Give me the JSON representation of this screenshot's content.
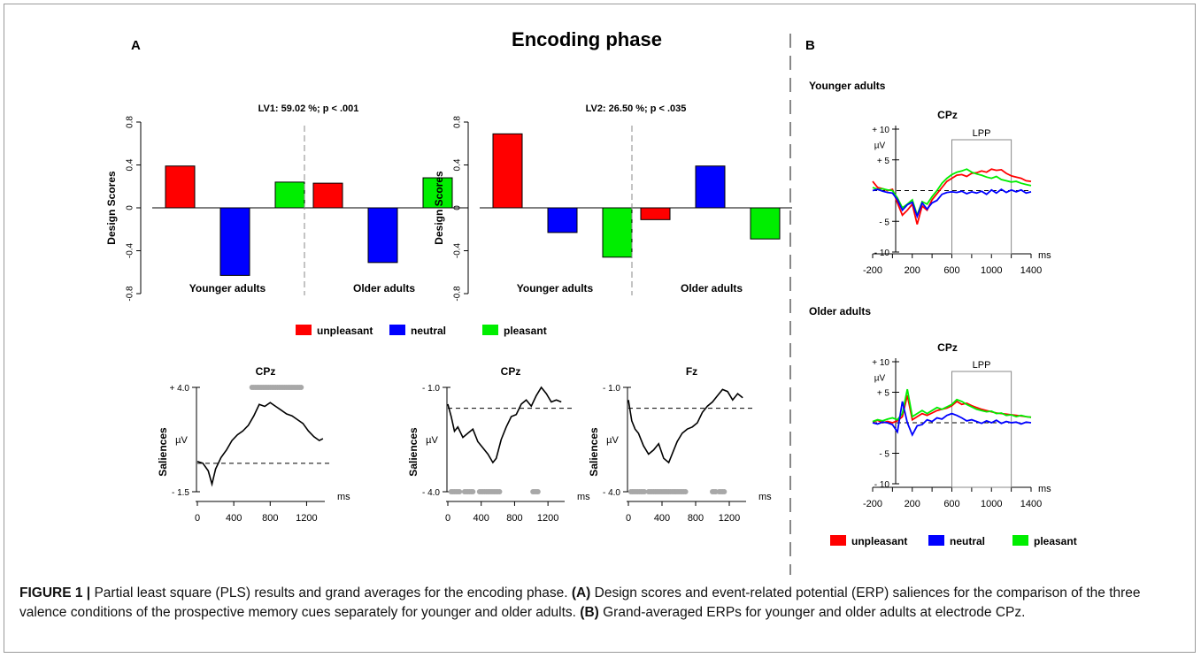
{
  "panel_a": {
    "label": "A",
    "title": "Encoding phase",
    "legend": [
      {
        "name": "unpleasant",
        "color": "#ff0000"
      },
      {
        "name": "neutral",
        "color": "#0000ff"
      },
      {
        "name": "pleasant",
        "color": "#00ee00"
      }
    ]
  },
  "panel_b": {
    "label": "B",
    "younger_label": "Younger adults",
    "older_label": "Older adults",
    "legend": [
      {
        "name": "unpleasant",
        "color": "#ff0000"
      },
      {
        "name": "neutral",
        "color": "#0000ff"
      },
      {
        "name": "pleasant",
        "color": "#00ee00"
      }
    ]
  },
  "chart_data": [
    {
      "id": "lv1",
      "type": "bar",
      "title": "LV1: 59.02 %; p < .001",
      "ylabel": "Design Scores",
      "ylim": [
        -0.8,
        0.8
      ],
      "yticks": [
        "0.8",
        "0.4",
        "0",
        "-0.4",
        "-0.8"
      ],
      "groups": [
        "Younger adults",
        "Older adults"
      ],
      "categories": [
        "unpleasant",
        "neutral",
        "pleasant"
      ],
      "series": [
        {
          "group": "Younger adults",
          "values": [
            0.39,
            -0.63,
            0.24
          ]
        },
        {
          "group": "Older adults",
          "values": [
            0.23,
            -0.51,
            0.28
          ]
        }
      ]
    },
    {
      "id": "lv2",
      "type": "bar",
      "title": "LV2: 26.50 %; p < .035",
      "ylabel": "Design Scores",
      "ylim": [
        -0.8,
        0.8
      ],
      "yticks": [
        "0.8",
        "0.4",
        "0",
        "-0.4",
        "-0.8"
      ],
      "groups": [
        "Younger adults",
        "Older adults"
      ],
      "categories": [
        "unpleasant",
        "neutral",
        "pleasant"
      ],
      "series": [
        {
          "group": "Younger adults",
          "values": [
            0.69,
            -0.23,
            -0.46
          ]
        },
        {
          "group": "Older adults",
          "values": [
            -0.11,
            0.39,
            -0.29
          ]
        }
      ]
    },
    {
      "id": "sal_cpz_1",
      "type": "line",
      "title": "CPz",
      "ylabel": "Saliences",
      "ylabel2": "µV",
      "xunit": "ms",
      "ylim": [
        -1.5,
        4.0
      ],
      "ytick_top": "+ 4.0",
      "ytick_bottom": "- 1.5",
      "xticks": [
        0,
        400,
        800,
        1200
      ],
      "baseline": 0,
      "x": [
        0,
        60,
        120,
        160,
        200,
        260,
        320,
        380,
        440,
        500,
        560,
        620,
        680,
        740,
        800,
        860,
        920,
        980,
        1040,
        1100,
        1160,
        1220,
        1280,
        1340,
        1380
      ],
      "y": [
        0.1,
        0.0,
        -0.4,
        -1.1,
        -0.3,
        0.3,
        0.7,
        1.2,
        1.5,
        1.7,
        2.0,
        2.5,
        3.1,
        3.0,
        3.2,
        3.0,
        2.8,
        2.6,
        2.5,
        2.3,
        2.1,
        1.7,
        1.4,
        1.2,
        1.3
      ],
      "sig_ranges": [
        [
          600,
          1140
        ]
      ]
    },
    {
      "id": "sal_cpz_2",
      "type": "line",
      "title": "CPz",
      "ylabel": "Saliences",
      "ylabel2": "µV",
      "xunit": "ms",
      "ylim": [
        -4.0,
        1.0
      ],
      "ytick_top": "- 1.0",
      "ytick_bottom": "- 4.0",
      "xticks": [
        0,
        400,
        800,
        1200
      ],
      "baseline": 0,
      "x": [
        0,
        40,
        80,
        120,
        180,
        240,
        300,
        360,
        420,
        480,
        540,
        580,
        640,
        700,
        760,
        820,
        880,
        940,
        1000,
        1060,
        1120,
        1180,
        1240,
        1300,
        1360
      ],
      "y": [
        0.2,
        -0.4,
        -1.1,
        -0.9,
        -1.4,
        -1.2,
        -1.0,
        -1.6,
        -1.9,
        -2.2,
        -2.6,
        -2.4,
        -1.5,
        -0.9,
        -0.4,
        -0.3,
        0.2,
        0.4,
        0.1,
        0.6,
        1.0,
        0.7,
        0.3,
        0.4,
        0.3
      ],
      "sig_ranges": [
        [
          40,
          140
        ],
        [
          200,
          310
        ],
        [
          380,
          630
        ],
        [
          1020,
          1080
        ]
      ]
    },
    {
      "id": "sal_fz",
      "type": "line",
      "title": "Fz",
      "ylabel": "Saliences",
      "ylabel2": "µV",
      "xunit": "ms",
      "ylim": [
        -4.0,
        1.0
      ],
      "ytick_top": "- 1.0",
      "ytick_bottom": "- 4.0",
      "xticks": [
        0,
        400,
        800,
        1200
      ],
      "baseline": 0,
      "x": [
        0,
        40,
        80,
        120,
        180,
        240,
        300,
        360,
        420,
        480,
        540,
        580,
        640,
        700,
        760,
        820,
        880,
        940,
        1000,
        1060,
        1120,
        1180,
        1240,
        1300,
        1360
      ],
      "y": [
        0.4,
        -0.6,
        -1.0,
        -1.2,
        -1.8,
        -2.2,
        -2.0,
        -1.7,
        -2.4,
        -2.6,
        -2.0,
        -1.6,
        -1.2,
        -1.0,
        -0.9,
        -0.7,
        -0.2,
        0.1,
        0.3,
        0.6,
        0.9,
        0.8,
        0.4,
        0.7,
        0.5
      ],
      "sig_ranges": [
        [
          30,
          200
        ],
        [
          240,
          420
        ],
        [
          440,
          680
        ],
        [
          1000,
          1040
        ],
        [
          1080,
          1140
        ]
      ]
    },
    {
      "id": "erp_younger",
      "type": "line",
      "title": "CPz",
      "ylabel": "µV",
      "xunit": "ms",
      "ylim": [
        -10,
        10
      ],
      "ytick_labels": [
        "+ 10",
        "+ 5",
        "- 5",
        "- 10"
      ],
      "ytick_values": [
        10,
        5,
        -5,
        -10
      ],
      "xlim": [
        -200,
        1400
      ],
      "xticks": [
        -200,
        200,
        600,
        1000,
        1400
      ],
      "box_label": "LPP",
      "box_range": [
        600,
        1200
      ],
      "x": [
        -200,
        -150,
        -100,
        -50,
        0,
        50,
        100,
        150,
        200,
        250,
        300,
        350,
        400,
        450,
        500,
        550,
        600,
        650,
        700,
        750,
        800,
        850,
        900,
        950,
        1000,
        1050,
        1100,
        1150,
        1200,
        1250,
        1300,
        1350,
        1400
      ],
      "series": [
        {
          "name": "unpleasant",
          "values": [
            1.5,
            0.5,
            0.3,
            0.0,
            0.2,
            -2.0,
            -4.0,
            -3.2,
            -2.2,
            -5.5,
            -2.5,
            -3.2,
            -1.5,
            -0.5,
            0.5,
            1.5,
            2.0,
            2.5,
            2.6,
            2.3,
            2.8,
            2.9,
            3.2,
            3.0,
            3.5,
            3.3,
            3.4,
            2.8,
            2.4,
            2.2,
            2.0,
            1.6,
            1.5
          ]
        },
        {
          "name": "neutral",
          "values": [
            0.0,
            0.2,
            -0.1,
            -0.3,
            -0.4,
            -1.5,
            -3.2,
            -2.3,
            -1.9,
            -4.2,
            -2.0,
            -3.0,
            -2.0,
            -1.6,
            -0.6,
            -0.3,
            -0.2,
            -0.3,
            -0.1,
            -0.5,
            -0.2,
            -0.4,
            -0.1,
            -0.6,
            0.1,
            -0.4,
            0.2,
            -0.3,
            0.1,
            -0.2,
            0.1,
            -0.4,
            -0.2
          ]
        },
        {
          "name": "pleasant",
          "values": [
            0.5,
            0.2,
            0.3,
            0.1,
            0.0,
            -1.2,
            -2.8,
            -2.2,
            -1.5,
            -4.0,
            -1.8,
            -2.2,
            -1.0,
            0.0,
            1.2,
            2.0,
            2.6,
            3.0,
            3.2,
            3.5,
            3.0,
            2.7,
            2.5,
            2.2,
            2.0,
            2.3,
            1.8,
            1.6,
            1.4,
            1.5,
            1.2,
            1.0,
            0.8
          ]
        }
      ]
    },
    {
      "id": "erp_older",
      "type": "line",
      "title": "CPz",
      "ylabel": "µV",
      "xunit": "ms",
      "ylim": [
        -10,
        10
      ],
      "ytick_labels": [
        "+ 10",
        "+ 5",
        "- 5",
        "- 10"
      ],
      "ytick_values": [
        10,
        5,
        -5,
        -10
      ],
      "xlim": [
        -200,
        1400
      ],
      "xticks": [
        -200,
        200,
        600,
        1000,
        1400
      ],
      "box_label": "LPP",
      "box_range": [
        600,
        1200
      ],
      "x": [
        -200,
        -150,
        -100,
        -50,
        0,
        50,
        100,
        150,
        200,
        250,
        300,
        350,
        400,
        450,
        500,
        550,
        600,
        650,
        700,
        750,
        800,
        850,
        900,
        950,
        1000,
        1050,
        1100,
        1150,
        1200,
        1250,
        1300,
        1350,
        1400
      ],
      "series": [
        {
          "name": "unpleasant",
          "values": [
            0.1,
            0.4,
            0.0,
            0.2,
            0.0,
            0.3,
            1.0,
            4.5,
            0.5,
            1.0,
            1.5,
            1.2,
            1.6,
            2.0,
            2.2,
            2.4,
            2.8,
            3.5,
            3.0,
            3.2,
            2.8,
            2.5,
            2.2,
            2.0,
            1.8,
            1.6,
            1.5,
            1.4,
            1.3,
            1.2,
            1.1,
            1.0,
            0.9
          ]
        },
        {
          "name": "neutral",
          "values": [
            0.0,
            -0.2,
            0.1,
            0.0,
            -0.3,
            -1.5,
            3.5,
            0.0,
            -2.0,
            -0.5,
            -0.3,
            0.5,
            0.2,
            0.8,
            0.6,
            1.2,
            1.5,
            1.2,
            0.8,
            0.3,
            0.5,
            0.2,
            -0.1,
            0.3,
            0.0,
            0.4,
            -0.1,
            0.2,
            0.0,
            0.1,
            -0.2,
            0.1,
            0.0
          ]
        },
        {
          "name": "pleasant",
          "values": [
            0.2,
            0.5,
            0.3,
            0.6,
            0.8,
            0.5,
            1.5,
            5.5,
            1.0,
            1.5,
            2.0,
            1.5,
            2.0,
            2.5,
            2.2,
            2.6,
            3.0,
            3.8,
            3.5,
            3.0,
            2.6,
            2.2,
            2.0,
            1.8,
            1.9,
            1.5,
            1.6,
            1.2,
            1.3,
            1.0,
            1.2,
            1.0,
            0.9
          ]
        }
      ]
    }
  ],
  "caption": {
    "label": "FIGURE 1 |",
    "text1": " Partial least square (PLS) results and grand averages for the encoding phase. ",
    "a_label": "(A)",
    "text2": " Design scores and event-related potential (ERP) saliences for the comparison of the three valence conditions of the prospective memory cues separately for younger and older adults. ",
    "b_label": "(B)",
    "text3": " Grand-averaged ERPs for younger and older adults at electrode CPz."
  }
}
